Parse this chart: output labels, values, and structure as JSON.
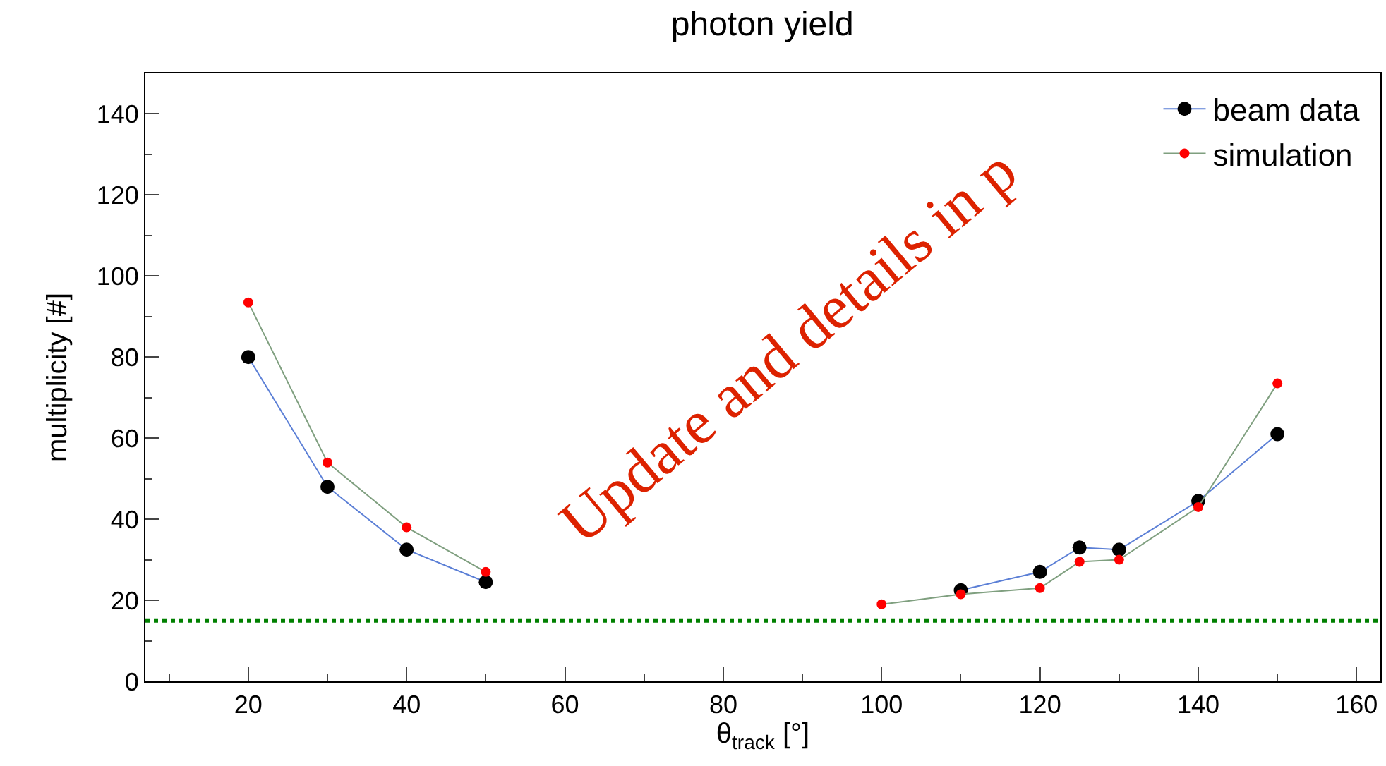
{
  "chart_data": {
    "type": "line",
    "title": "photon yield",
    "xlabel": "θ$_{track}$ [°]",
    "ylabel": "multiplicity [#]",
    "x": [
      20,
      30,
      40,
      50,
      60,
      70,
      80,
      90,
      100,
      110,
      120,
      125,
      130,
      140,
      150
    ],
    "series": [
      {
        "name": "beam data",
        "color": "#5b7fd6",
        "colors": [
          "#000000",
          "#000000",
          "#000000",
          "#000000",
          "#000000",
          "#000000",
          "#000000",
          "#000000",
          "#000000",
          "#000000",
          "#000000",
          "#000000",
          "#000000",
          "#000000",
          "#000000"
        ],
        "values": [
          80,
          48,
          32.5,
          24.5,
          null,
          null,
          null,
          null,
          null,
          22.5,
          27,
          33,
          32.5,
          44.5,
          61
        ]
      },
      {
        "name": "simulation",
        "color": "#7f9f7f",
        "colors": [
          "#ff0000",
          "#ff0000",
          "#ff0000",
          "#ff0000",
          "#ff0000",
          "#ff0000",
          "#ff0000",
          "#ff0000",
          "#ff0000",
          "#ff0000",
          "#ff0000",
          "#ff0000",
          "#ff0000",
          "#ff0000",
          "#ff0000"
        ],
        "values": [
          93.5,
          54,
          38,
          27,
          null,
          null,
          null,
          null,
          19,
          21.5,
          23,
          29.5,
          30,
          43,
          73.5
        ]
      }
    ],
    "xlim": [
      7,
      163
    ],
    "xticks": [
      20,
      40,
      60,
      80,
      100,
      120,
      140,
      160
    ],
    "ylim": [
      0,
      150
    ],
    "yticks": [
      0,
      20,
      40,
      60,
      80,
      100,
      120,
      140
    ],
    "ref_lines": [
      {
        "axis": "y",
        "value": 15,
        "color": "#008000",
        "line_style": "dotted"
      }
    ],
    "annotations": [
      "Update and details in p"
    ],
    "legend": "top right",
    "marker": "circle",
    "line_style": "solid"
  }
}
